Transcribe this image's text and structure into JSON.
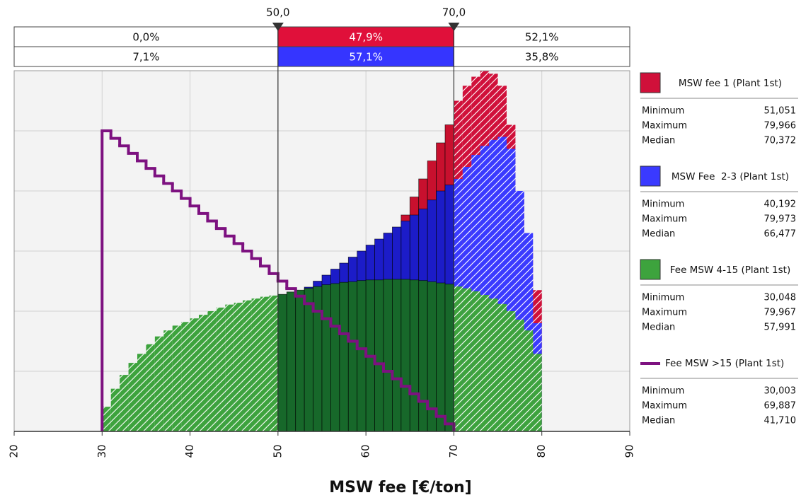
{
  "chart_data": {
    "type": "histogram",
    "x_label": "MSW fee [€/ton]",
    "xlim": [
      20,
      90
    ],
    "xticks": [
      20,
      30,
      40,
      50,
      60,
      70,
      80,
      90
    ],
    "ylim": [
      0,
      6
    ],
    "yticks": [
      0,
      1,
      2,
      3,
      4,
      5,
      6
    ],
    "grid": true,
    "delimiters": [
      {
        "value": 50,
        "label": "50,0"
      },
      {
        "value": 70,
        "label": "70,0"
      }
    ],
    "delimiter_bands": [
      {
        "color": "#e0103a",
        "values": [
          0,
          47.9,
          52.1
        ],
        "value_labels": [
          "0,0%",
          "47,9%",
          "52,1%"
        ]
      },
      {
        "color": "#3535ff",
        "values": [
          7.1,
          57.1,
          35.8
        ],
        "value_labels": [
          "7,1%",
          "57,1%",
          "35,8%"
        ]
      }
    ],
    "series": [
      {
        "name": "MSW fee 1 (Plant 1st)",
        "color": "#d0103a",
        "solid_color": "#c8102e",
        "bins": [
          51,
          52,
          53,
          54,
          55,
          56,
          57,
          58,
          59,
          60,
          61,
          62,
          63,
          64,
          65,
          66,
          67,
          68,
          69,
          70,
          71,
          72,
          73,
          74,
          75,
          76,
          77,
          78,
          79,
          80
        ],
        "values": [
          0.1,
          0.3,
          0.5,
          0.7,
          0.9,
          1.2,
          1.5,
          1.8,
          2.1,
          2.4,
          2.7,
          3.0,
          3.3,
          3.6,
          3.9,
          4.2,
          4.5,
          4.8,
          5.1,
          5.5,
          5.75,
          5.9,
          6.0,
          5.95,
          5.75,
          5.1,
          3.9,
          3.0,
          2.35
        ],
        "stats": [
          {
            "name": "Minimum",
            "value": 51.051,
            "label": "51,051"
          },
          {
            "name": "Maximum",
            "value": 79.966,
            "label": "79,966"
          },
          {
            "name": "Median",
            "value": 70.372,
            "label": "70,372"
          }
        ]
      },
      {
        "name": "MSW Fee  2-3 (Plant 1st)",
        "color": "#3a3aff",
        "solid_color": "#1c1cc8",
        "bins": [
          40,
          41,
          42,
          43,
          44,
          45,
          46,
          47,
          48,
          49,
          50,
          51,
          52,
          53,
          54,
          55,
          56,
          57,
          58,
          59,
          60,
          61,
          62,
          63,
          64,
          65,
          66,
          67,
          68,
          69,
          70,
          71,
          72,
          73,
          74,
          75,
          76,
          77,
          78,
          79,
          80
        ],
        "values": [
          0.1,
          0.3,
          0.5,
          0.7,
          0.9,
          1.1,
          1.3,
          1.5,
          1.7,
          1.9,
          2.1,
          2.2,
          2.3,
          2.4,
          2.5,
          2.6,
          2.7,
          2.8,
          2.9,
          3.0,
          3.1,
          3.2,
          3.3,
          3.4,
          3.5,
          3.6,
          3.7,
          3.85,
          4.0,
          4.1,
          4.2,
          4.4,
          4.6,
          4.75,
          4.85,
          4.9,
          4.7,
          4.0,
          3.3,
          1.8
        ],
        "stats": [
          {
            "name": "Minimum",
            "value": 40.192,
            "label": "40,192"
          },
          {
            "name": "Maximum",
            "value": 79.973,
            "label": "79,973"
          },
          {
            "name": "Median",
            "value": 66.477,
            "label": "66,477"
          }
        ]
      },
      {
        "name": "Fee MSW 4-15 (Plant 1st)",
        "color": "#3da33d",
        "solid_color": "#17682a",
        "bins": [
          30,
          31,
          32,
          33,
          34,
          35,
          36,
          37,
          38,
          39,
          40,
          41,
          42,
          43,
          44,
          45,
          46,
          47,
          48,
          49,
          50,
          51,
          52,
          53,
          54,
          55,
          56,
          57,
          58,
          59,
          60,
          61,
          62,
          63,
          64,
          65,
          66,
          67,
          68,
          69,
          70,
          71,
          72,
          73,
          74,
          75,
          76,
          77,
          78,
          79,
          80
        ],
        "values": [
          0.41,
          0.71,
          0.94,
          1.14,
          1.29,
          1.45,
          1.58,
          1.68,
          1.76,
          1.82,
          1.88,
          1.94,
          2.0,
          2.06,
          2.11,
          2.14,
          2.18,
          2.21,
          2.24,
          2.26,
          2.28,
          2.32,
          2.35,
          2.38,
          2.41,
          2.44,
          2.46,
          2.48,
          2.49,
          2.51,
          2.52,
          2.52,
          2.53,
          2.53,
          2.53,
          2.52,
          2.51,
          2.49,
          2.47,
          2.45,
          2.41,
          2.38,
          2.33,
          2.27,
          2.21,
          2.12,
          2.0,
          1.86,
          1.68,
          1.29
        ],
        "stats": [
          {
            "name": "Minimum",
            "value": 30.048,
            "label": "30,048"
          },
          {
            "name": "Maximum",
            "value": 79.967,
            "label": "79,967"
          },
          {
            "name": "Median",
            "value": 57.991,
            "label": "57,991"
          }
        ]
      },
      {
        "name": "Fee MSW >15 (Plant 1st)",
        "color": "#7d1180",
        "style": "step",
        "bins": [
          30,
          31,
          32,
          33,
          34,
          35,
          36,
          37,
          38,
          39,
          40,
          41,
          42,
          43,
          44,
          45,
          46,
          47,
          48,
          49,
          50,
          51,
          52,
          53,
          54,
          55,
          56,
          57,
          58,
          59,
          60,
          61,
          62,
          63,
          64,
          65,
          66,
          67,
          68,
          69,
          70
        ],
        "values": [
          5,
          4.875,
          4.75,
          4.625,
          4.5,
          4.375,
          4.25,
          4.125,
          4,
          3.875,
          3.75,
          3.625,
          3.5,
          3.375,
          3.25,
          3.125,
          3,
          2.875,
          2.75,
          2.625,
          2.5,
          2.375,
          2.25,
          2.125,
          2,
          1.875,
          1.75,
          1.625,
          1.5,
          1.375,
          1.25,
          1.125,
          1,
          0.875,
          0.75,
          0.625,
          0.5,
          0.375,
          0.25,
          0.125
        ],
        "stats": [
          {
            "name": "Minimum",
            "value": 30.003,
            "label": "30,003"
          },
          {
            "name": "Maximum",
            "value": 69.887,
            "label": "69,887"
          },
          {
            "name": "Median",
            "value": 41.71,
            "label": "41,710"
          }
        ]
      }
    ]
  }
}
